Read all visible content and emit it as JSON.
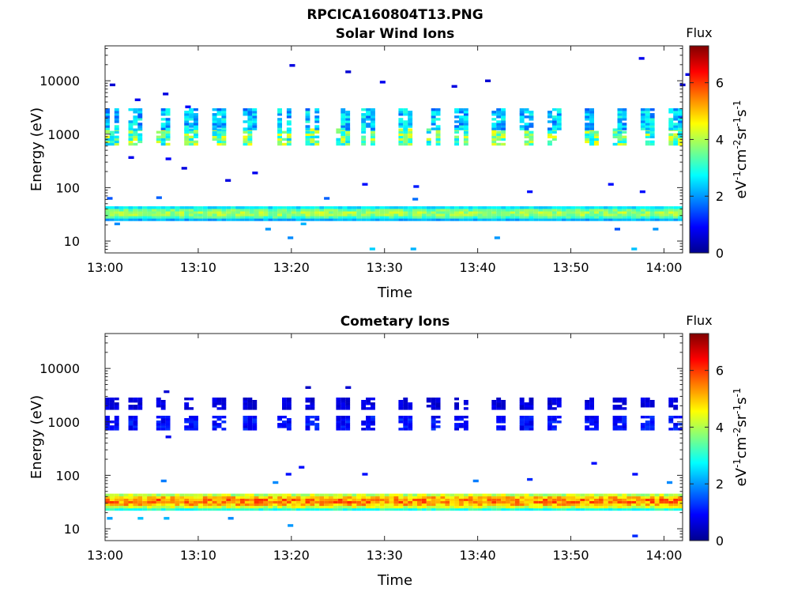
{
  "figure": {
    "title": "RPCICA160804T13.PNG"
  },
  "chart_data": [
    {
      "type": "heatmap",
      "title": "Solar Wind Ions",
      "xlabel": "Time",
      "ylabel": "Energy (eV)",
      "yscale": "log",
      "ylim": [
        6,
        45000
      ],
      "xlim": [
        "13:00",
        "14:02"
      ],
      "xticks": [
        "13:00",
        "13:10",
        "13:20",
        "13:30",
        "13:40",
        "13:50",
        "14:00"
      ],
      "yticks": [
        10,
        100,
        1000,
        10000
      ],
      "ytick_labels": [
        "10",
        "100",
        "1000",
        "10000"
      ],
      "colorbar": {
        "title": "Flux",
        "label": "eV-1cm-2sr-1s-1",
        "range": [
          0,
          7.3
        ],
        "ticks": [
          0,
          2,
          4,
          6
        ],
        "colormap": "jet"
      },
      "sweep_starts_min": [
        0,
        2.5,
        5.5,
        8.5,
        11.5,
        14.8,
        18.5,
        21.5,
        24.8,
        27.5,
        31.5,
        34.5,
        37.5,
        41.5,
        44.5,
        47.5,
        51.5,
        54.5,
        57.5,
        60.5
      ],
      "bands": [
        {
          "e_low": 620,
          "e_high": 1200,
          "flux_peak": 4.2
        },
        {
          "e_low": 1200,
          "e_high": 2800,
          "flux_peak": 2.8
        },
        {
          "e_low": 24,
          "e_high": 42,
          "flux_peak": 4.0
        }
      ],
      "low_band_end_min": 62,
      "scattered_points": [
        {
          "t": 0.5,
          "e": 8000,
          "flux": 0.6
        },
        {
          "t": 3.2,
          "e": 4200,
          "flux": 0.8
        },
        {
          "t": 6.2,
          "e": 5400,
          "flux": 0.7
        },
        {
          "t": 8.6,
          "e": 3100,
          "flux": 0.9
        },
        {
          "t": 19.8,
          "e": 18500,
          "flux": 0.7
        },
        {
          "t": 25.8,
          "e": 14000,
          "flux": 0.6
        },
        {
          "t": 29.5,
          "e": 9000,
          "flux": 0.8
        },
        {
          "t": 37.2,
          "e": 7500,
          "flux": 0.7
        },
        {
          "t": 40.8,
          "e": 9500,
          "flux": 0.6
        },
        {
          "t": 57.3,
          "e": 25000,
          "flux": 0.8
        },
        {
          "t": 62.3,
          "e": 12500,
          "flux": 0.7
        },
        {
          "t": 61.7,
          "e": 8000,
          "flux": 0.6
        },
        {
          "t": 2.5,
          "e": 350,
          "flux": 0.8
        },
        {
          "t": 6.5,
          "e": 330,
          "flux": 0.9
        },
        {
          "t": 8.2,
          "e": 220,
          "flux": 0.7
        },
        {
          "t": 15.8,
          "e": 180,
          "flux": 0.8
        },
        {
          "t": 12.9,
          "e": 130,
          "flux": 0.7
        },
        {
          "t": 27.6,
          "e": 110,
          "flux": 1.0
        },
        {
          "t": 33.1,
          "e": 100,
          "flux": 1.1
        },
        {
          "t": 45.3,
          "e": 80,
          "flux": 1.0
        },
        {
          "t": 54.0,
          "e": 110,
          "flux": 1.0
        },
        {
          "t": 57.4,
          "e": 80,
          "flux": 1.0
        },
        {
          "t": 0.2,
          "e": 60,
          "flux": 1.5
        },
        {
          "t": 5.5,
          "e": 62,
          "flux": 1.6
        },
        {
          "t": 23.5,
          "e": 60,
          "flux": 1.6
        },
        {
          "t": 33.0,
          "e": 58,
          "flux": 1.7
        },
        {
          "t": 1.0,
          "e": 20,
          "flux": 1.9
        },
        {
          "t": 17.2,
          "e": 16,
          "flux": 2.0
        },
        {
          "t": 19.6,
          "e": 11,
          "flux": 1.9
        },
        {
          "t": 21.0,
          "e": 20,
          "flux": 2.2
        },
        {
          "t": 41.8,
          "e": 11,
          "flux": 2.0
        },
        {
          "t": 28.4,
          "e": 6.8,
          "flux": 2.4
        },
        {
          "t": 32.8,
          "e": 6.8,
          "flux": 2.2
        },
        {
          "t": 54.7,
          "e": 16,
          "flux": 1.5
        },
        {
          "t": 58.8,
          "e": 16,
          "flux": 2.0
        },
        {
          "t": 56.5,
          "e": 6.8,
          "flux": 2.3
        }
      ]
    },
    {
      "type": "heatmap",
      "title": "Cometary Ions",
      "xlabel": "Time",
      "ylabel": "Energy (eV)",
      "yscale": "log",
      "ylim": [
        6,
        45000
      ],
      "xlim": [
        "13:00",
        "14:02"
      ],
      "xticks": [
        "13:00",
        "13:10",
        "13:20",
        "13:30",
        "13:40",
        "13:50",
        "14:00"
      ],
      "yticks": [
        10,
        100,
        1000,
        10000
      ],
      "ytick_labels": [
        "10",
        "100",
        "1000",
        "10000"
      ],
      "colorbar": {
        "title": "Flux",
        "label": "eV-1cm-2sr-1s-1",
        "range": [
          0,
          7.3
        ],
        "ticks": [
          0,
          2,
          4,
          6
        ],
        "colormap": "jet"
      },
      "sweep_starts_min": [
        0,
        2.5,
        5.5,
        8.5,
        11.5,
        14.8,
        18.5,
        21.5,
        24.8,
        27.5,
        31.5,
        34.5,
        37.5,
        41.5,
        44.5,
        47.5,
        51.5,
        54.5,
        57.5,
        60.5
      ],
      "bands": [
        {
          "e_low": 700,
          "e_high": 1250,
          "flux_peak": 1.2
        },
        {
          "e_low": 1700,
          "e_high": 2600,
          "flux_peak": 0.8
        },
        {
          "e_low": 22,
          "e_high": 45,
          "flux_peak": 5.6
        }
      ],
      "low_band_end_min": 62,
      "scattered_points": [
        {
          "t": 6.3,
          "e": 3500,
          "flux": 0.6
        },
        {
          "t": 21.5,
          "e": 4200,
          "flux": 0.5
        },
        {
          "t": 25.8,
          "e": 4200,
          "flux": 0.6
        },
        {
          "t": 6.5,
          "e": 500,
          "flux": 0.8
        },
        {
          "t": 19.4,
          "e": 100,
          "flux": 1.0
        },
        {
          "t": 20.8,
          "e": 135,
          "flux": 1.0
        },
        {
          "t": 27.6,
          "e": 100,
          "flux": 1.0
        },
        {
          "t": 45.3,
          "e": 80,
          "flux": 1.2
        },
        {
          "t": 52.2,
          "e": 160,
          "flux": 1.0
        },
        {
          "t": 56.6,
          "e": 100,
          "flux": 1.0
        },
        {
          "t": 6.0,
          "e": 75,
          "flux": 1.8
        },
        {
          "t": 18.0,
          "e": 70,
          "flux": 1.9
        },
        {
          "t": 39.5,
          "e": 75,
          "flux": 1.8
        },
        {
          "t": 60.3,
          "e": 70,
          "flux": 1.9
        },
        {
          "t": 0.2,
          "e": 15,
          "flux": 2.1
        },
        {
          "t": 3.5,
          "e": 15,
          "flux": 2.3
        },
        {
          "t": 6.3,
          "e": 15,
          "flux": 2.2
        },
        {
          "t": 13.2,
          "e": 15,
          "flux": 1.9
        },
        {
          "t": 19.6,
          "e": 11,
          "flux": 2.0
        },
        {
          "t": 56.6,
          "e": 7,
          "flux": 1.2
        }
      ]
    }
  ]
}
